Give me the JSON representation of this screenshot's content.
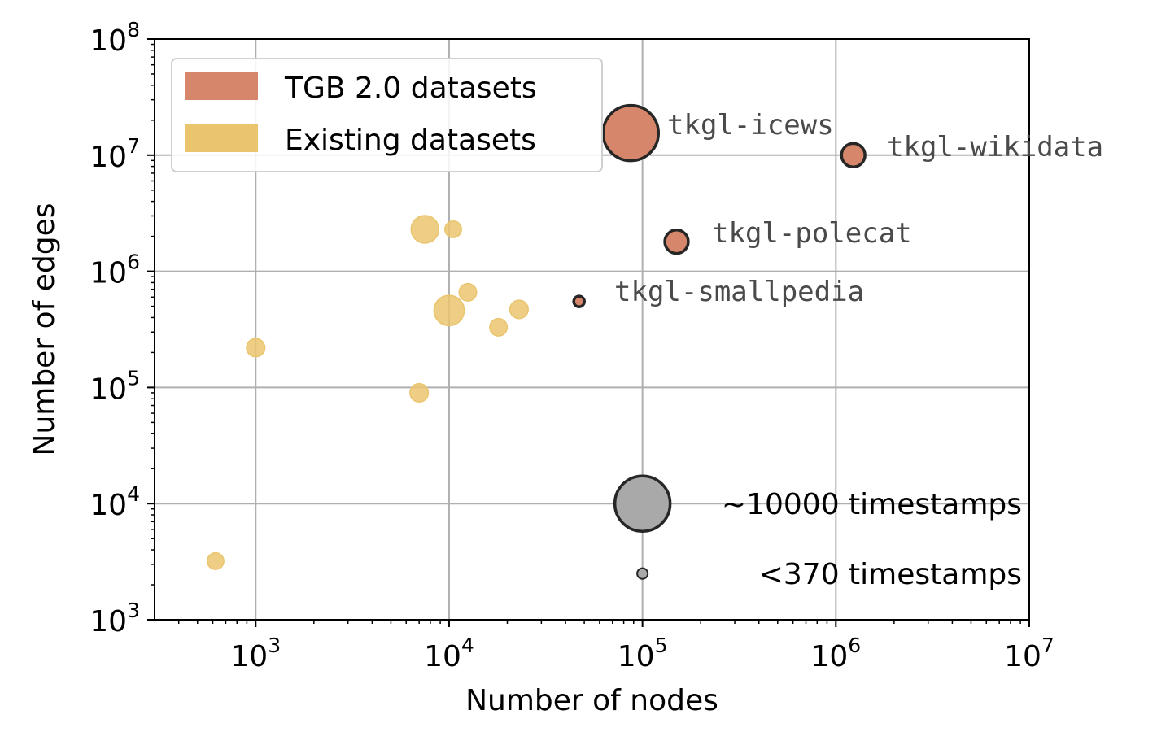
{
  "chart_data": {
    "type": "scatter",
    "xlabel": "Number of nodes",
    "ylabel": "Number of edges",
    "xscale": "log",
    "yscale": "log",
    "xlim": [
      300,
      10000000
    ],
    "ylim": [
      1000,
      100000000
    ],
    "x_ticks": [
      {
        "base": "10",
        "exp": "3",
        "value": 1000
      },
      {
        "base": "10",
        "exp": "4",
        "value": 10000
      },
      {
        "base": "10",
        "exp": "5",
        "value": 100000
      },
      {
        "base": "10",
        "exp": "6",
        "value": 1000000
      },
      {
        "base": "10",
        "exp": "7",
        "value": 10000000
      }
    ],
    "y_ticks": [
      {
        "base": "10",
        "exp": "3",
        "value": 1000
      },
      {
        "base": "10",
        "exp": "4",
        "value": 10000
      },
      {
        "base": "10",
        "exp": "5",
        "value": 100000
      },
      {
        "base": "10",
        "exp": "6",
        "value": 1000000
      },
      {
        "base": "10",
        "exp": "7",
        "value": 10000000
      },
      {
        "base": "10",
        "exp": "8",
        "value": 100000000
      }
    ],
    "grid": true,
    "legend": {
      "placement": "top-left",
      "entries": [
        {
          "label": "TGB 2.0 datasets",
          "color": "#d6866a"
        },
        {
          "label": "Existing datasets",
          "color": "#eac56e"
        }
      ]
    },
    "series": [
      {
        "name": "TGB 2.0 datasets",
        "color": "#d6866a",
        "edge_color": "#262626",
        "points": [
          {
            "label": "tkgl-icews",
            "x": 87000,
            "y": 15500000,
            "size": 10000
          },
          {
            "label": "tkgl-wikidata",
            "x": 1230000,
            "y": 10000000,
            "size": 1800
          },
          {
            "label": "tkgl-polecat",
            "x": 150000,
            "y": 1800000,
            "size": 1800
          },
          {
            "label": "tkgl-smallpedia",
            "x": 47000,
            "y": 550000,
            "size": 370
          }
        ]
      },
      {
        "name": "Existing datasets",
        "color": "#eac56e",
        "points": [
          {
            "x": 620,
            "y": 3200,
            "size": 900
          },
          {
            "x": 1000,
            "y": 220000,
            "size": 1100
          },
          {
            "x": 7000,
            "y": 90000,
            "size": 1100
          },
          {
            "x": 7500,
            "y": 2300000,
            "size": 2500
          },
          {
            "x": 10500,
            "y": 2300000,
            "size": 900
          },
          {
            "x": 10000,
            "y": 460000,
            "size": 3000
          },
          {
            "x": 12500,
            "y": 660000,
            "size": 1000
          },
          {
            "x": 18000,
            "y": 330000,
            "size": 1000
          },
          {
            "x": 23000,
            "y": 470000,
            "size": 1100
          }
        ]
      }
    ],
    "size_legend": [
      {
        "label": "~10000 timestamps",
        "x": 100000,
        "y": 10000,
        "size": 10000
      },
      {
        "label": "<370 timestamps",
        "x": 100000,
        "y": 2500,
        "size": 370
      }
    ]
  }
}
